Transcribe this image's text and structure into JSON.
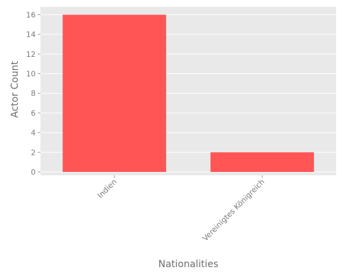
{
  "chart_data": {
    "type": "bar",
    "categories": [
      "Indien",
      "Vereinigtes Königreich"
    ],
    "values": [
      16,
      2
    ],
    "xlabel": "Nationalities",
    "ylabel": "Actor Count",
    "ylim": [
      0,
      16.8
    ],
    "yticks": [
      0,
      2,
      4,
      6,
      8,
      10,
      12,
      14,
      16
    ],
    "grid": true,
    "colors": {
      "bar": "#ff5555",
      "plot_background": "#e9e9e9",
      "grid": "#ffffff",
      "tick_label": "#7a7a7a",
      "axis_title": "#6e6e6e"
    }
  }
}
